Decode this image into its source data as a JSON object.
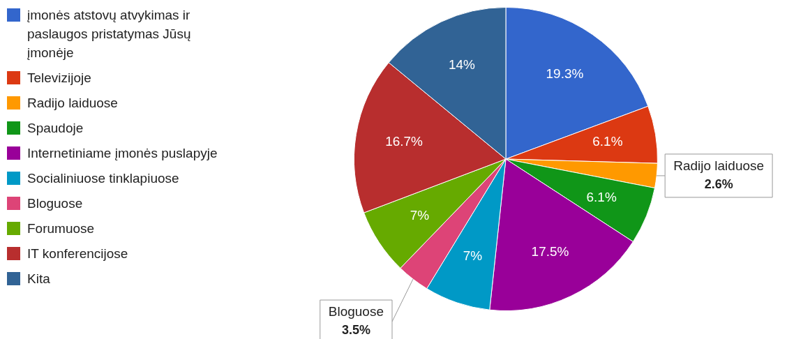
{
  "chart_data": {
    "type": "pie",
    "legend": "left",
    "categories": [
      "įmonės atstovų atvykimas ir paslaugos pristatymas Jūsų įmonėje",
      "Televizijoje",
      "Radijo laiduose",
      "Spaudoje",
      "Internetiniame įmonės puslapyje",
      "Socialiniuose tinklapiuose",
      "Bloguose",
      "Forumuose",
      "IT konferencijose",
      "Kita"
    ],
    "values": [
      19.3,
      6.1,
      2.6,
      6.1,
      17.5,
      7,
      3.5,
      7,
      16.7,
      14
    ],
    "value_labels": [
      "19.3%",
      "6.1%",
      "2.6%",
      "6.1%",
      "17.5%",
      "7%",
      "3.5%",
      "7%",
      "16.7%",
      "14%"
    ],
    "colors": [
      "#3366cc",
      "#dc3912",
      "#ff9900",
      "#109618",
      "#990099",
      "#0099c6",
      "#dd4477",
      "#66aa00",
      "#b82e2e",
      "#316395"
    ]
  }
}
